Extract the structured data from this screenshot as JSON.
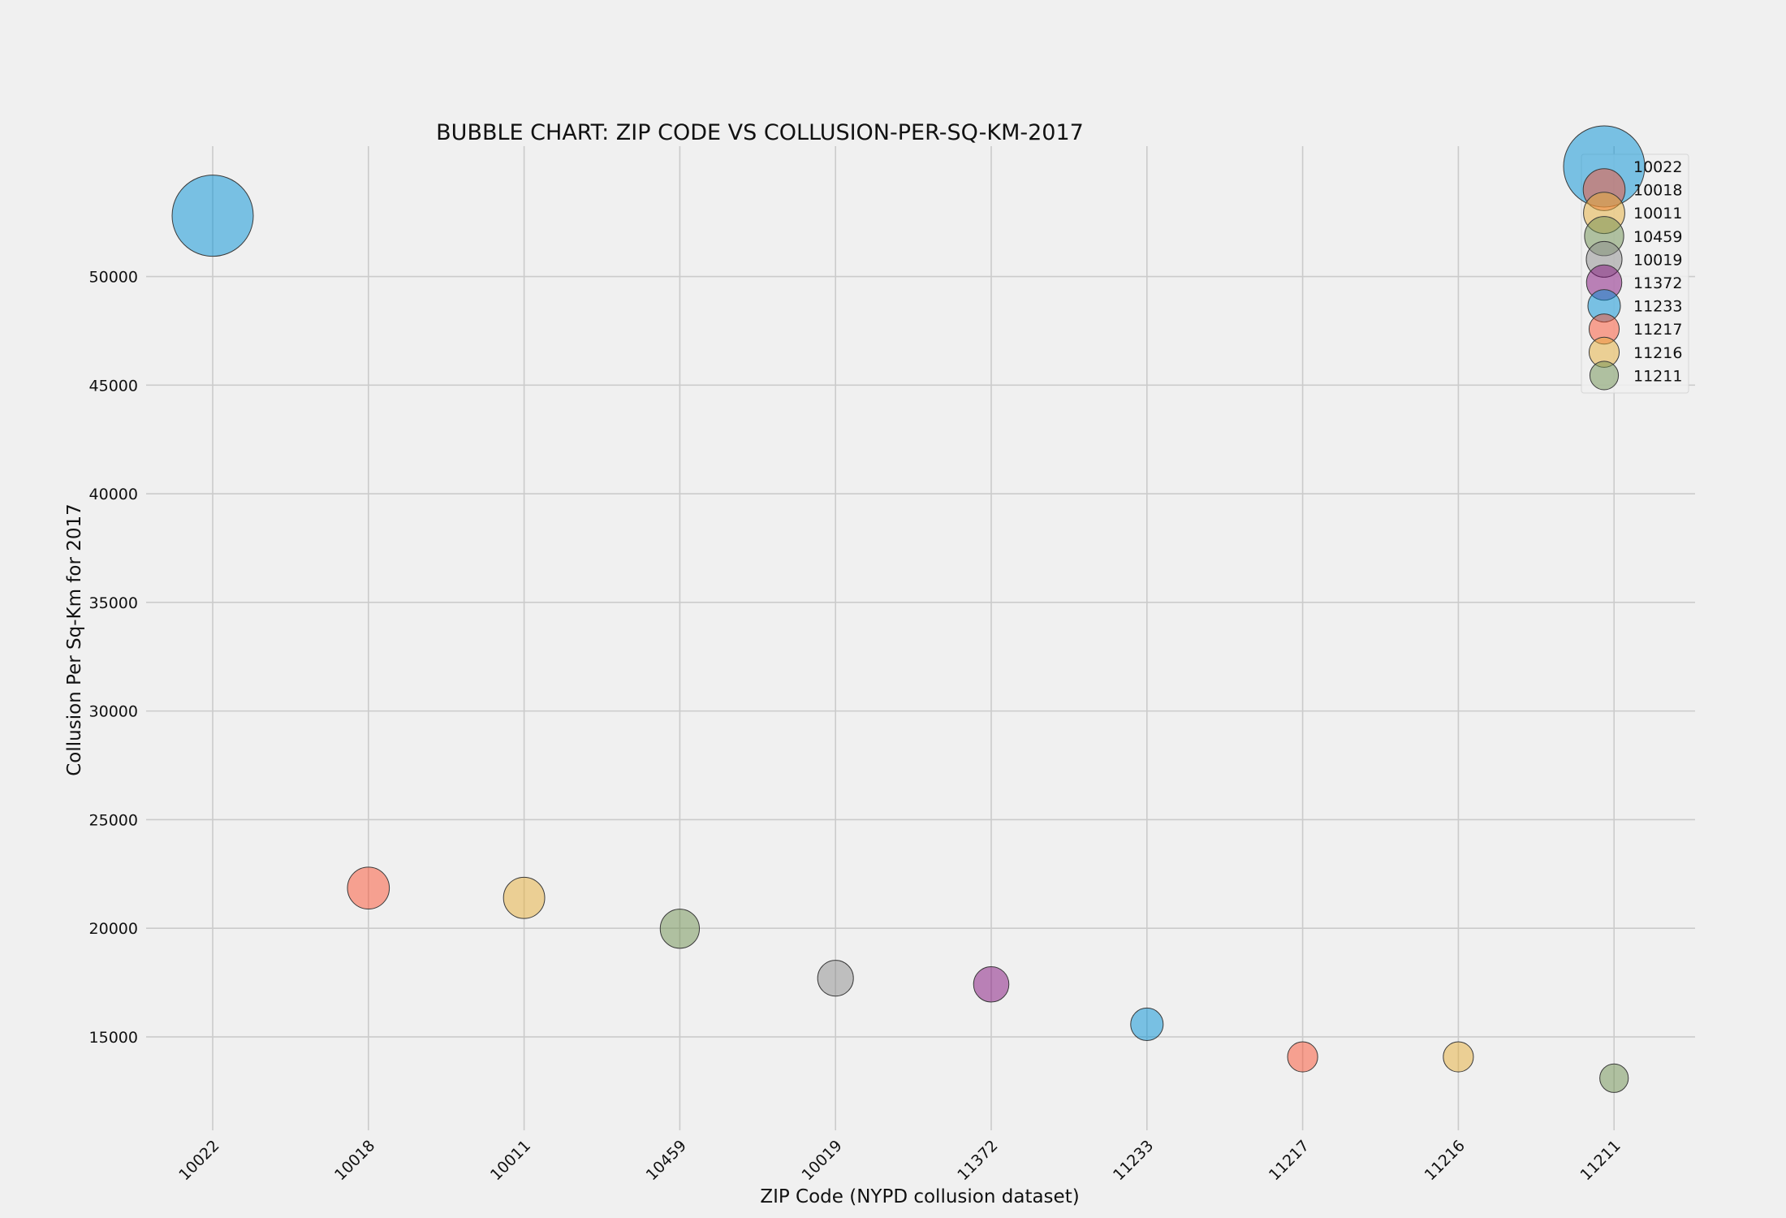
{
  "chart_data": {
    "type": "scatter",
    "title": "BUBBLE CHART: ZIP CODE VS COLLUSION-PER-SQ-KM-2017",
    "xlabel": "ZIP Code (NYPD collusion dataset)",
    "ylabel": "Collusion Per Sq-Km for 2017",
    "categories": [
      "10022",
      "10018",
      "10011",
      "10459",
      "10019",
      "11372",
      "11233",
      "11217",
      "11216",
      "11211"
    ],
    "values": [
      52800,
      21850,
      21400,
      19980,
      17700,
      17420,
      15580,
      14080,
      14080,
      13100
    ],
    "colors": [
      "#008fd5",
      "#fc4f30",
      "#e5ae38",
      "#6d904f",
      "#8b8b8b",
      "#810f7c",
      "#008fd5",
      "#fc4f30",
      "#e5ae38",
      "#6d904f"
    ],
    "bubble_alpha": 0.5,
    "bubble_size_encodes": "value",
    "ylim": [
      10700,
      56000
    ],
    "yticks": [
      15000,
      20000,
      25000,
      30000,
      35000,
      40000,
      45000,
      50000
    ],
    "grid": true,
    "legend": {
      "placement": "top-right",
      "entries": [
        "10022",
        "10018",
        "10011",
        "10459",
        "10019",
        "11372",
        "11233",
        "11217",
        "11216",
        "11211"
      ],
      "colors": [
        "#008fd5",
        "#fc4f30",
        "#e5ae38",
        "#6d904f",
        "#8b8b8b",
        "#810f7c",
        "#008fd5",
        "#fc4f30",
        "#e5ae38",
        "#6d904f"
      ]
    }
  }
}
